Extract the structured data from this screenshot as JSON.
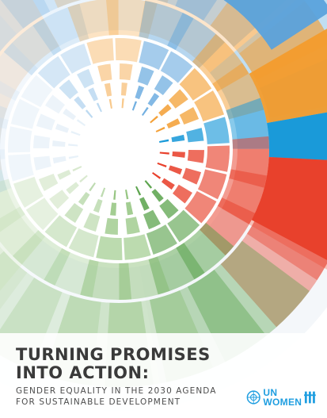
{
  "cover": {
    "title_line1": "Turning Promises",
    "title_line2": "Into Action:",
    "subtitle_line1": "Gender Equality in the 2030 Agenda",
    "subtitle_line2": "for Sustainable Development"
  },
  "logo": {
    "text_top": "UN",
    "text_bottom": "WOMEN",
    "color": "#1f9ee0"
  },
  "art": {
    "palette": [
      "#e8412c",
      "#f23a2a",
      "#1a9ad9",
      "#f39c2d",
      "#5aa2dc",
      "#4c9b3c",
      "#7db864"
    ]
  }
}
